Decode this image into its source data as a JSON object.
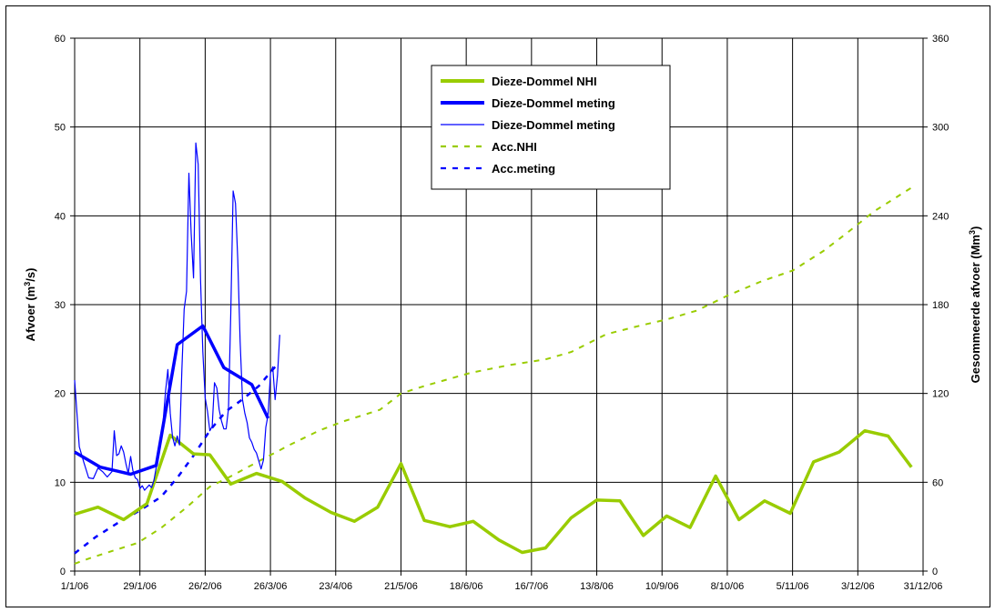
{
  "chart_data": {
    "type": "line",
    "title": "",
    "x_axis": {
      "type": "date",
      "range": [
        "2006-01-01",
        "2006-12-31"
      ],
      "tick_dates": [
        "2006-01-01",
        "2006-01-29",
        "2006-02-26",
        "2006-03-26",
        "2006-04-23",
        "2006-05-21",
        "2006-06-18",
        "2006-07-16",
        "2006-08-13",
        "2006-09-10",
        "2006-10-08",
        "2006-11-05",
        "2006-12-03",
        "2006-12-31"
      ],
      "tick_labels": [
        "1/1/06",
        "29/1/06",
        "26/2/06",
        "26/3/06",
        "23/4/06",
        "21/5/06",
        "18/6/06",
        "16/7/06",
        "13/8/06",
        "10/9/06",
        "8/10/06",
        "5/11/06",
        "3/12/06",
        "31/12/06"
      ],
      "grid": true
    },
    "y_left": {
      "label": "Afvoer (m",
      "label_sup": "3",
      "label_end": "/s)",
      "range": [
        0,
        60
      ],
      "ticks": [
        0,
        10,
        20,
        30,
        40,
        50,
        60
      ],
      "grid": true
    },
    "y_right": {
      "label": "Gesommeerde afvoer (Mm",
      "label_sup": "3",
      "label_end": ")",
      "range": [
        0,
        360
      ],
      "ticks": [
        0,
        60,
        120,
        180,
        240,
        300,
        360
      ]
    },
    "legend": {
      "position": "top-center",
      "entries": [
        {
          "label": "Dieze-Dommel NHI",
          "color": "#99cc00",
          "style": "thick-solid"
        },
        {
          "label": "Dieze-Dommel meting",
          "color": "#0000ff",
          "style": "thick-solid"
        },
        {
          "label": "Dieze-Dommel meting",
          "color": "#0000ff",
          "style": "thin-solid"
        },
        {
          "label": "Acc.NHI",
          "color": "#99cc00",
          "style": "dashed"
        },
        {
          "label": "Acc.meting",
          "color": "#0000ff",
          "style": "dashed"
        }
      ]
    },
    "series": [
      {
        "name": "Dieze-Dommel NHI",
        "axis": "left",
        "color": "#99cc00",
        "width": 3.5,
        "dash": "",
        "points": [
          [
            "2006-01-01",
            6.4
          ],
          [
            "2006-01-11",
            7.2
          ],
          [
            "2006-01-22",
            5.8
          ],
          [
            "2006-02-01",
            7.6
          ],
          [
            "2006-02-11",
            15.3
          ],
          [
            "2006-02-21",
            13.2
          ],
          [
            "2006-02-28",
            13.1
          ],
          [
            "2006-03-09",
            9.8
          ],
          [
            "2006-03-20",
            11.0
          ],
          [
            "2006-03-31",
            10.1
          ],
          [
            "2006-04-10",
            8.2
          ],
          [
            "2006-04-21",
            6.6
          ],
          [
            "2006-05-01",
            5.6
          ],
          [
            "2006-05-11",
            7.2
          ],
          [
            "2006-05-21",
            12.1
          ],
          [
            "2006-05-31",
            5.7
          ],
          [
            "2006-06-11",
            5.0
          ],
          [
            "2006-06-21",
            5.6
          ],
          [
            "2006-07-02",
            3.5
          ],
          [
            "2006-07-12",
            2.1
          ],
          [
            "2006-07-22",
            2.6
          ],
          [
            "2006-08-02",
            6.0
          ],
          [
            "2006-08-13",
            8.0
          ],
          [
            "2006-08-23",
            7.9
          ],
          [
            "2006-09-02",
            4.0
          ],
          [
            "2006-09-12",
            6.2
          ],
          [
            "2006-09-22",
            4.9
          ],
          [
            "2006-10-03",
            10.7
          ],
          [
            "2006-10-13",
            5.8
          ],
          [
            "2006-10-24",
            7.9
          ],
          [
            "2006-11-04",
            6.5
          ],
          [
            "2006-11-14",
            12.3
          ],
          [
            "2006-11-25",
            13.4
          ],
          [
            "2006-12-06",
            15.8
          ],
          [
            "2006-12-16",
            15.2
          ],
          [
            "2006-12-26",
            11.7
          ]
        ]
      },
      {
        "name": "Dieze-Dommel meting",
        "axis": "left",
        "color": "#0000ff",
        "width": 3.5,
        "dash": "",
        "points": [
          [
            "2006-01-01",
            13.4
          ],
          [
            "2006-01-12",
            11.7
          ],
          [
            "2006-01-25",
            10.9
          ],
          [
            "2006-02-05",
            11.9
          ],
          [
            "2006-02-14",
            25.5
          ],
          [
            "2006-02-25",
            27.6
          ],
          [
            "2006-03-06",
            22.9
          ],
          [
            "2006-03-18",
            21.0
          ],
          [
            "2006-03-25",
            17.2
          ]
        ]
      },
      {
        "name": "Dieze-Dommel meting",
        "axis": "left",
        "color": "#0000ff",
        "width": 1.2,
        "dash": "",
        "points": [
          [
            "2006-01-01",
            21.5
          ],
          [
            "2006-01-03",
            14.0
          ],
          [
            "2006-01-05",
            12.2
          ],
          [
            "2006-01-07",
            10.5
          ],
          [
            "2006-01-09",
            10.4
          ],
          [
            "2006-01-11",
            11.6
          ],
          [
            "2006-01-13",
            11.2
          ],
          [
            "2006-01-15",
            10.6
          ],
          [
            "2006-01-17",
            11.2
          ],
          [
            "2006-01-18",
            15.8
          ],
          [
            "2006-01-19",
            13.0
          ],
          [
            "2006-01-20",
            13.2
          ],
          [
            "2006-01-21",
            14.1
          ],
          [
            "2006-01-22",
            13.4
          ],
          [
            "2006-01-23",
            12.1
          ],
          [
            "2006-01-24",
            11.0
          ],
          [
            "2006-01-25",
            12.9
          ],
          [
            "2006-01-26",
            11.3
          ],
          [
            "2006-01-27",
            10.5
          ],
          [
            "2006-01-28",
            10.3
          ],
          [
            "2006-01-29",
            9.3
          ],
          [
            "2006-01-30",
            9.6
          ],
          [
            "2006-01-31",
            9.1
          ],
          [
            "2006-02-02",
            9.7
          ],
          [
            "2006-02-03",
            9.4
          ],
          [
            "2006-02-04",
            10.2
          ],
          [
            "2006-02-06",
            13.2
          ],
          [
            "2006-02-08",
            17.0
          ],
          [
            "2006-02-09",
            20.3
          ],
          [
            "2006-02-10",
            22.7
          ],
          [
            "2006-02-11",
            17.8
          ],
          [
            "2006-02-12",
            15.1
          ],
          [
            "2006-02-13",
            14.1
          ],
          [
            "2006-02-14",
            15.2
          ],
          [
            "2006-02-15",
            14.2
          ],
          [
            "2006-02-16",
            22.7
          ],
          [
            "2006-02-17",
            29.5
          ],
          [
            "2006-02-18",
            31.5
          ],
          [
            "2006-02-19",
            44.8
          ],
          [
            "2006-02-20",
            38.0
          ],
          [
            "2006-02-21",
            33.0
          ],
          [
            "2006-02-22",
            48.2
          ],
          [
            "2006-02-23",
            45.8
          ],
          [
            "2006-02-24",
            32.8
          ],
          [
            "2006-02-25",
            24.7
          ],
          [
            "2006-02-26",
            19.5
          ],
          [
            "2006-02-27",
            18.0
          ],
          [
            "2006-02-28",
            15.8
          ],
          [
            "2006-03-01",
            16.3
          ],
          [
            "2006-03-02",
            21.2
          ],
          [
            "2006-03-03",
            20.6
          ],
          [
            "2006-03-04",
            18.2
          ],
          [
            "2006-03-05",
            16.9
          ],
          [
            "2006-03-06",
            16.0
          ],
          [
            "2006-03-07",
            16.0
          ],
          [
            "2006-03-08",
            18.3
          ],
          [
            "2006-03-09",
            29.0
          ],
          [
            "2006-03-10",
            42.8
          ],
          [
            "2006-03-11",
            41.4
          ],
          [
            "2006-03-12",
            35.0
          ],
          [
            "2006-03-13",
            25.8
          ],
          [
            "2006-03-14",
            19.3
          ],
          [
            "2006-03-15",
            17.8
          ],
          [
            "2006-03-16",
            16.7
          ],
          [
            "2006-03-17",
            15.0
          ],
          [
            "2006-03-18",
            14.5
          ],
          [
            "2006-03-19",
            13.7
          ],
          [
            "2006-03-20",
            13.3
          ],
          [
            "2006-03-21",
            12.4
          ],
          [
            "2006-03-22",
            11.5
          ],
          [
            "2006-03-23",
            12.5
          ],
          [
            "2006-03-24",
            16.2
          ],
          [
            "2006-03-25",
            17.6
          ],
          [
            "2006-03-26",
            22.3
          ],
          [
            "2006-03-27",
            23.0
          ],
          [
            "2006-03-28",
            19.3
          ],
          [
            "2006-03-29",
            22.0
          ],
          [
            "2006-03-30",
            26.6
          ]
        ]
      },
      {
        "name": "Acc.NHI",
        "axis": "right",
        "color": "#99cc00",
        "width": 2,
        "dash": "6,7",
        "points": [
          [
            "2006-01-01",
            5
          ],
          [
            "2006-01-08",
            9
          ],
          [
            "2006-01-18",
            14
          ],
          [
            "2006-01-28",
            19
          ],
          [
            "2006-02-07",
            29
          ],
          [
            "2006-02-18",
            43
          ],
          [
            "2006-02-28",
            57
          ],
          [
            "2006-03-09",
            64
          ],
          [
            "2006-03-22",
            75
          ],
          [
            "2006-04-03",
            85
          ],
          [
            "2006-04-16",
            95
          ],
          [
            "2006-04-26",
            101
          ],
          [
            "2006-05-12",
            109
          ],
          [
            "2006-05-21",
            120
          ],
          [
            "2006-05-31",
            125
          ],
          [
            "2006-06-20",
            134
          ],
          [
            "2006-07-06",
            139
          ],
          [
            "2006-07-22",
            143
          ],
          [
            "2006-08-02",
            148
          ],
          [
            "2006-08-17",
            160
          ],
          [
            "2006-09-01",
            166
          ],
          [
            "2006-09-12",
            170
          ],
          [
            "2006-09-25",
            176
          ],
          [
            "2006-10-08",
            186
          ],
          [
            "2006-10-23",
            196
          ],
          [
            "2006-11-05",
            203
          ],
          [
            "2006-11-18",
            216
          ],
          [
            "2006-11-28",
            228
          ],
          [
            "2006-12-10",
            243
          ],
          [
            "2006-12-27",
            260
          ]
        ]
      },
      {
        "name": "Acc.meting",
        "axis": "right",
        "color": "#0000ff",
        "width": 2.5,
        "dash": "6,7",
        "points": [
          [
            "2006-01-01",
            12
          ],
          [
            "2006-01-10",
            23
          ],
          [
            "2006-01-20",
            33
          ],
          [
            "2006-01-29",
            41
          ],
          [
            "2006-02-07",
            50
          ],
          [
            "2006-02-14",
            63
          ],
          [
            "2006-02-21",
            78
          ],
          [
            "2006-02-28",
            95
          ],
          [
            "2006-03-07",
            108
          ],
          [
            "2006-03-14",
            116
          ],
          [
            "2006-03-21",
            125
          ],
          [
            "2006-03-28",
            138
          ]
        ]
      }
    ]
  }
}
